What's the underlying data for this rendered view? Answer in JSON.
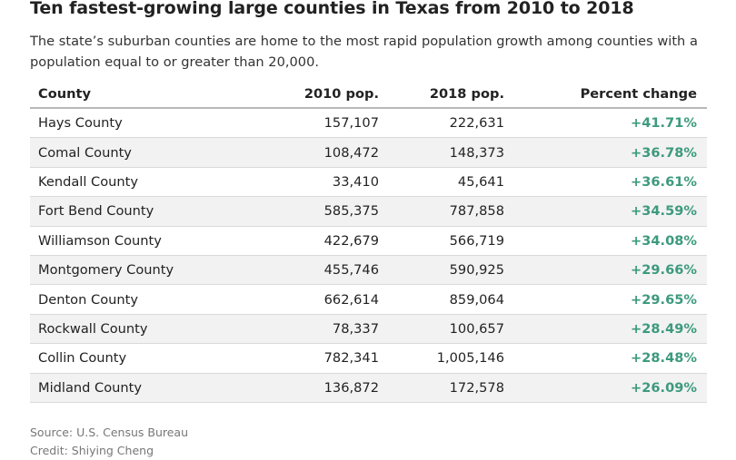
{
  "chart_data": {
    "type": "table",
    "title": "Ten fastest-growing large counties in Texas from 2010 to 2018",
    "subtitle": "The state’s suburban counties are home to the most rapid population growth among counties with a population equal to or greater than 20,000.",
    "columns": [
      "County",
      "2010 pop.",
      "2018 pop.",
      "Percent change"
    ],
    "rows": [
      {
        "county": "Hays County",
        "pop2010": "157,107",
        "pop2018": "222,631",
        "pct": "+41.71%"
      },
      {
        "county": "Comal County",
        "pop2010": "108,472",
        "pop2018": "148,373",
        "pct": "+36.78%"
      },
      {
        "county": "Kendall County",
        "pop2010": "33,410",
        "pop2018": "45,641",
        "pct": "+36.61%"
      },
      {
        "county": "Fort Bend County",
        "pop2010": "585,375",
        "pop2018": "787,858",
        "pct": "+34.59%"
      },
      {
        "county": "Williamson County",
        "pop2010": "422,679",
        "pop2018": "566,719",
        "pct": "+34.08%"
      },
      {
        "county": "Montgomery County",
        "pop2010": "455,746",
        "pop2018": "590,925",
        "pct": "+29.66%"
      },
      {
        "county": "Denton County",
        "pop2010": "662,614",
        "pop2018": "859,064",
        "pct": "+29.65%"
      },
      {
        "county": "Rockwall County",
        "pop2010": "78,337",
        "pop2018": "100,657",
        "pct": "+28.49%"
      },
      {
        "county": "Collin County",
        "pop2010": "782,341",
        "pop2018": "1,005,146",
        "pct": "+28.48%"
      },
      {
        "county": "Midland County",
        "pop2010": "136,872",
        "pop2018": "172,578",
        "pct": "+26.09%"
      }
    ],
    "source": "Source: U.S. Census Bureau",
    "credit": "Credit: Shiying Cheng",
    "colors": {
      "positive": "#3c9a7d",
      "shaded_row": "#f2f2f2"
    }
  }
}
